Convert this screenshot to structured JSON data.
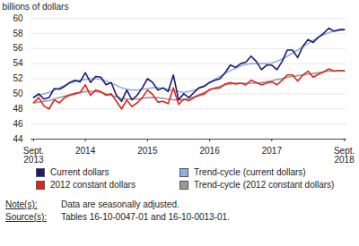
{
  "chart_data": {
    "type": "line",
    "y_label": "billions of dollars",
    "categories": [
      "Sept.\n2013",
      null,
      null,
      null,
      null,
      null,
      null,
      null,
      null,
      null,
      "2014",
      null,
      null,
      null,
      null,
      null,
      null,
      null,
      null,
      null,
      null,
      null,
      "2015",
      null,
      null,
      null,
      null,
      null,
      null,
      null,
      null,
      null,
      null,
      null,
      "2016",
      null,
      null,
      null,
      null,
      null,
      null,
      null,
      null,
      null,
      null,
      null,
      "2017",
      null,
      null,
      null,
      null,
      null,
      null,
      null,
      null,
      null,
      null,
      null,
      null,
      null,
      "Sept.\n2018"
    ],
    "series": [
      {
        "name": "Current dollars",
        "color": "#1f1a6e",
        "values": [
          49.5,
          50.0,
          49.3,
          49.5,
          50.7,
          50.6,
          51.0,
          51.5,
          51.8,
          51.6,
          52.8,
          51.5,
          52.3,
          52.2,
          51.2,
          51.5,
          49.8,
          49.0,
          50.5,
          49.2,
          49.8,
          50.8,
          52.0,
          51.5,
          50.5,
          50.8,
          50.3,
          52.5,
          49.2,
          50.0,
          49.5,
          50.2,
          50.8,
          51.0,
          51.5,
          51.8,
          52.0,
          52.8,
          53.8,
          53.5,
          54.0,
          54.2,
          55.0,
          54.3,
          53.2,
          53.8,
          53.8,
          53.2,
          54.3,
          55.8,
          55.8,
          54.8,
          56.3,
          57.2,
          56.8,
          57.5,
          58.0,
          58.7,
          58.3,
          58.5,
          58.5
        ]
      },
      {
        "name": "Trend-cycle (current dollars)",
        "color": "#8db3e2",
        "values": [
          49.6,
          49.8,
          50.0,
          50.2,
          50.5,
          50.8,
          51.1,
          51.4,
          51.6,
          51.8,
          51.9,
          52.0,
          52.0,
          51.9,
          51.7,
          51.4,
          51.1,
          50.8,
          50.6,
          50.5,
          50.5,
          50.6,
          50.7,
          50.8,
          50.8,
          50.7,
          50.6,
          50.4,
          50.3,
          50.2,
          50.3,
          50.5,
          50.8,
          51.1,
          51.5,
          51.9,
          52.3,
          52.7,
          53.1,
          53.4,
          53.7,
          53.9,
          54.0,
          54.0,
          54.0,
          54.0,
          54.1,
          54.3,
          54.6,
          55.0,
          55.4,
          55.8,
          56.2,
          56.7,
          57.1,
          57.5,
          57.8,
          58.1,
          58.3,
          58.4,
          58.5
        ]
      },
      {
        "name": "2012 constant dollars",
        "color": "#e2231a",
        "values": [
          48.8,
          49.5,
          48.4,
          48.0,
          49.2,
          48.8,
          49.5,
          49.8,
          50.0,
          50.2,
          51.2,
          49.8,
          50.5,
          50.3,
          49.8,
          50.0,
          49.0,
          48.0,
          49.2,
          48.3,
          48.8,
          49.5,
          50.5,
          49.9,
          48.9,
          49.0,
          48.7,
          50.8,
          48.6,
          49.3,
          49.1,
          49.5,
          49.8,
          50.0,
          50.6,
          50.7,
          50.8,
          51.3,
          51.5,
          51.3,
          51.4,
          51.2,
          51.8,
          51.5,
          51.2,
          51.4,
          51.6,
          51.2,
          51.8,
          52.5,
          52.5,
          51.7,
          52.5,
          53.0,
          52.2,
          52.6,
          52.9,
          53.3,
          53.0,
          53.1,
          53.0
        ]
      },
      {
        "name": "Trend-cycle (2012 constant dollars)",
        "color": "#9a9a9a",
        "values": [
          48.8,
          48.9,
          49.0,
          49.1,
          49.3,
          49.5,
          49.7,
          49.9,
          50.1,
          50.2,
          50.3,
          50.3,
          50.3,
          50.2,
          50.0,
          49.8,
          49.6,
          49.4,
          49.3,
          49.3,
          49.3,
          49.4,
          49.5,
          49.5,
          49.5,
          49.4,
          49.3,
          49.2,
          49.2,
          49.2,
          49.4,
          49.6,
          49.9,
          50.2,
          50.5,
          50.8,
          51.0,
          51.2,
          51.3,
          51.4,
          51.4,
          51.4,
          51.4,
          51.4,
          51.5,
          51.6,
          51.7,
          51.9,
          52.0,
          52.2,
          52.3,
          52.4,
          52.5,
          52.6,
          52.7,
          52.8,
          52.9,
          53.0,
          53.0,
          53.1,
          53.1
        ]
      }
    ],
    "ylim": [
      44,
      60
    ],
    "yticks": [
      44,
      46,
      48,
      50,
      52,
      54,
      56,
      58,
      60
    ],
    "grid": true,
    "legend": "bottom",
    "notes": [
      {
        "label": "Note(s):",
        "text": "Data are seasonally adjusted."
      },
      {
        "label": "Source(s):",
        "text": "Tables 16-10-0047-01 and 16-10-0013-01."
      }
    ]
  }
}
